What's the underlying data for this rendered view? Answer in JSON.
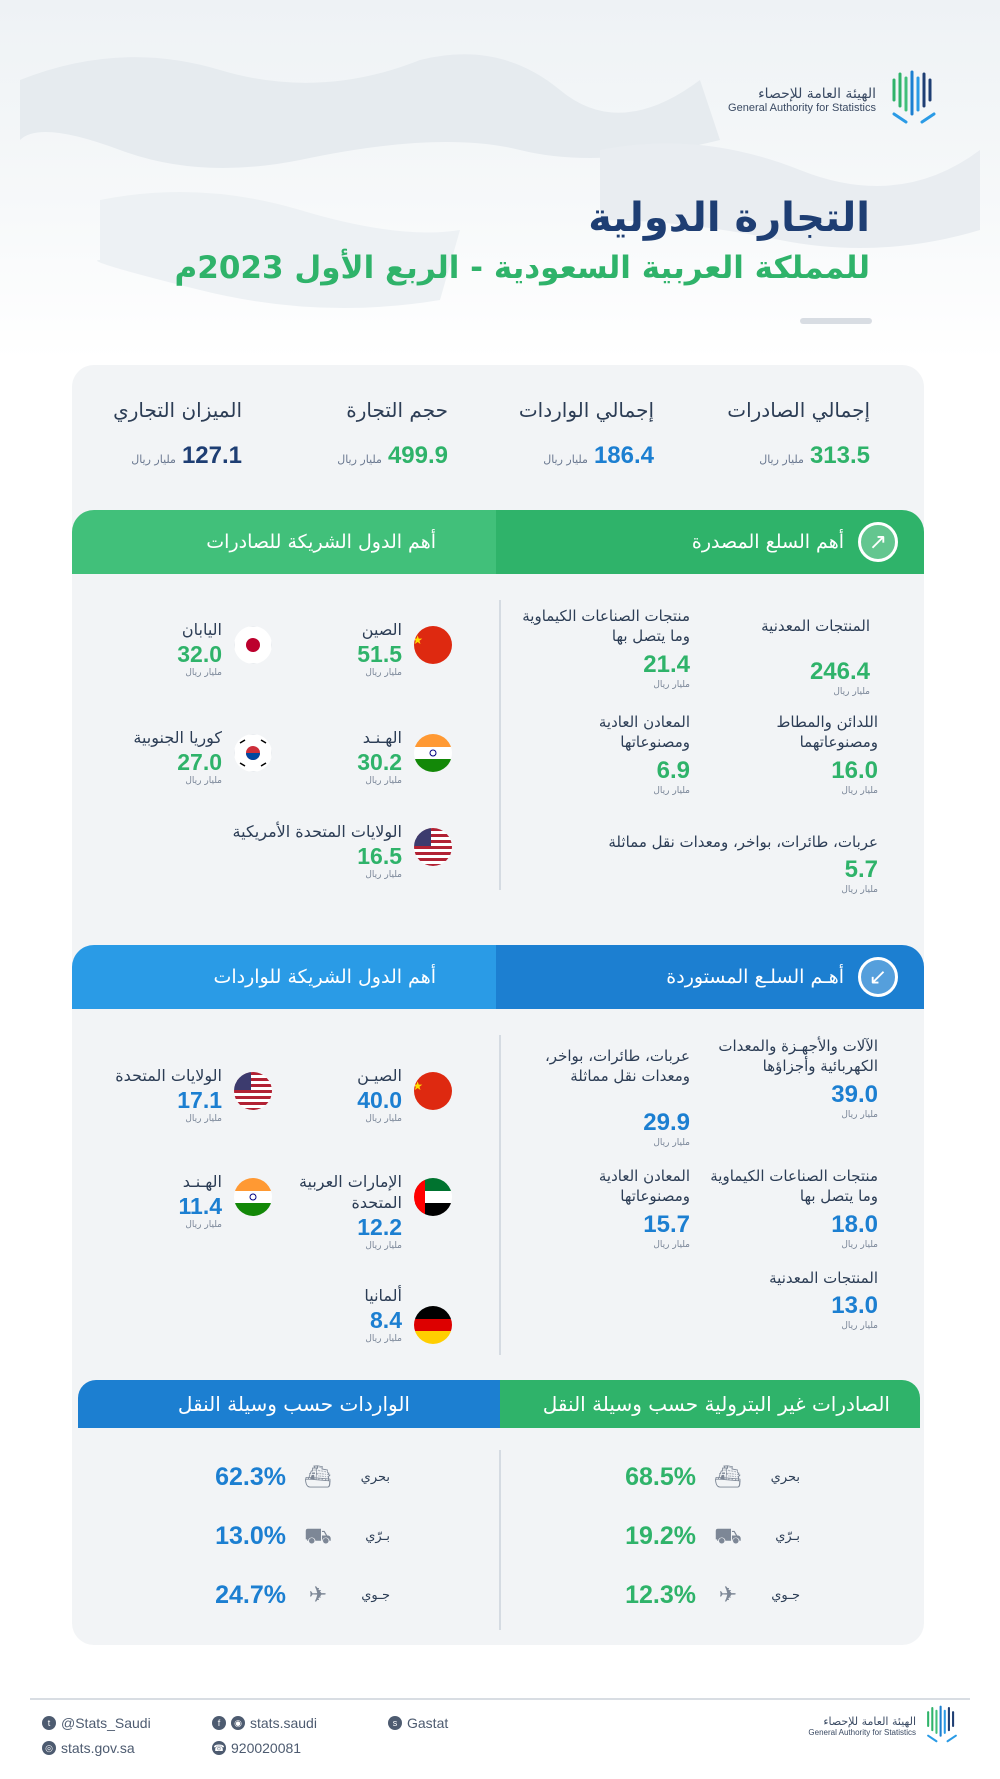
{
  "header": {
    "logo_ar": "الهيئة العامة للإحصاء",
    "logo_en": "General Authority for Statistics",
    "title": "التجارة الدولية",
    "subtitle": "للمملكة العربية السعودية - الربع الأول 2023م"
  },
  "summary": [
    {
      "label": "إجمالي الصادرات",
      "value": "313.5",
      "unit": "مليار ريال",
      "color": "#2fb36a"
    },
    {
      "label": "إجمالي الواردات",
      "value": "186.4",
      "unit": "مليار ريال",
      "color": "#1c7fd1"
    },
    {
      "label": "حجم التجارة",
      "value": "499.9",
      "unit": "مليار ريال",
      "color": "#2fb36a"
    },
    {
      "label": "الميزان التجاري",
      "value": "127.1",
      "unit": "مليار ريال",
      "color": "#1e3e73"
    }
  ],
  "exports": {
    "goods_title": "أهم السلع المصدرة",
    "partners_title": "أهم الدول الشريكة للصادرات",
    "goods": [
      {
        "label": "المنتجات المعدنية",
        "value": "246.4",
        "unit": "مليار ريال"
      },
      {
        "label": "منتجات الصناعات الكيماوية وما يتصل بها",
        "value": "21.4",
        "unit": "مليار ريال"
      },
      {
        "label": "اللدائن والمطاط ومصنوعاتهما",
        "value": "16.0",
        "unit": "مليار ريال"
      },
      {
        "label": "المعادن العادية ومصنوعاتها",
        "value": "6.9",
        "unit": "مليار ريال"
      },
      {
        "label": "عربات، طائرات، بواخر، ومعدات نقل مماثلة",
        "value": "5.7",
        "unit": "مليار ريال"
      }
    ],
    "partners": [
      {
        "label": "الصين",
        "value": "51.5",
        "unit": "مليار ريال"
      },
      {
        "label": "اليابان",
        "value": "32.0",
        "unit": "مليار ريال"
      },
      {
        "label": "الهـنـد",
        "value": "30.2",
        "unit": "مليار ريال"
      },
      {
        "label": "كوريا الجنوبية",
        "value": "27.0",
        "unit": "مليار ريال"
      },
      {
        "label": "الولايات المتحدة الأمريكية",
        "value": "16.5",
        "unit": "مليار ريال"
      }
    ]
  },
  "imports": {
    "goods_title": "أهـم السلـع المستوردة",
    "partners_title": "أهم الدول الشريكة للواردات",
    "goods": [
      {
        "label": "الآلات والأجهـزة والمعدات الكهربائية وأجزاؤها",
        "value": "39.0",
        "unit": "مليار ريال"
      },
      {
        "label": "عربات، طائرات، بواخر، ومعدات نقل مماثلة",
        "value": "29.9",
        "unit": "مليار ريال"
      },
      {
        "label": "منتجات الصناعات الكيماوية وما يتصل بها",
        "value": "18.0",
        "unit": "مليار ريال"
      },
      {
        "label": "المعادن العادية ومصنوعاتها",
        "value": "15.7",
        "unit": "مليار ريال"
      },
      {
        "label": "المنتجات المعدنية",
        "value": "13.0",
        "unit": "مليار ريال"
      }
    ],
    "partners": [
      {
        "label": "الصيـن",
        "value": "40.0",
        "unit": "مليار ريال"
      },
      {
        "label": "الولايات المتحدة",
        "value": "17.1",
        "unit": "مليار ريال"
      },
      {
        "label": "الإمارات العربية المتحدة",
        "value": "12.2",
        "unit": "مليار ريال"
      },
      {
        "label": "الهـنـد",
        "value": "11.4",
        "unit": "مليار ريال"
      },
      {
        "label": "ألمانيا",
        "value": "8.4",
        "unit": "مليار ريال"
      }
    ]
  },
  "transport": {
    "exports_title": "الصادرات غير البترولية حسب وسيلة النقل",
    "imports_title": "الواردات حسب وسيلة النقل",
    "exports": [
      {
        "label": "بحري",
        "value": "68.5%",
        "icon": "ship-icon"
      },
      {
        "label": "بـرّي",
        "value": "19.2%",
        "icon": "truck-icon"
      },
      {
        "label": "جـوي",
        "value": "12.3%",
        "icon": "plane-icon"
      }
    ],
    "imports": [
      {
        "label": "بحري",
        "value": "62.3%",
        "icon": "ship-icon"
      },
      {
        "label": "بـرّي",
        "value": "13.0%",
        "icon": "truck-icon"
      },
      {
        "label": "جـوي",
        "value": "24.7%",
        "icon": "plane-icon"
      }
    ]
  },
  "footer": {
    "twitter": "@Stats_Saudi",
    "web": "stats.gov.sa",
    "social": "stats.saudi",
    "phone": "920020081",
    "snap": "Gastat",
    "logo_ar": "الهيئة العامة للإحصاء",
    "logo_en": "General Authority for Statistics"
  },
  "colors": {
    "green": "#2fb36a",
    "blue": "#1c7fd1",
    "navy": "#1e3e73"
  }
}
